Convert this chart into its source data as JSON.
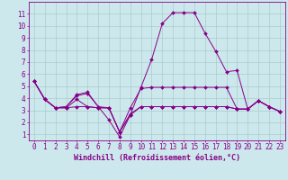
{
  "xlabel": "Windchill (Refroidissement éolien,°C)",
  "background_color": "#cce8ec",
  "line_color": "#880088",
  "grid_color": "#aacccc",
  "xlim": [
    -0.5,
    23.5
  ],
  "ylim": [
    0.5,
    12.0
  ],
  "xticks": [
    0,
    1,
    2,
    3,
    4,
    5,
    6,
    7,
    8,
    9,
    10,
    11,
    12,
    13,
    14,
    15,
    16,
    17,
    18,
    19,
    20,
    21,
    22,
    23
  ],
  "yticks": [
    1,
    2,
    3,
    4,
    5,
    6,
    7,
    8,
    9,
    10,
    11
  ],
  "lines": [
    [
      5.4,
      3.9,
      3.2,
      3.3,
      4.3,
      4.5,
      3.3,
      2.2,
      0.8,
      2.6,
      4.9,
      7.2,
      10.2,
      11.1,
      11.1,
      11.1,
      9.4,
      7.9,
      6.2,
      6.3,
      3.1,
      3.8,
      3.3,
      2.9
    ],
    [
      5.4,
      3.9,
      3.2,
      3.3,
      4.2,
      4.4,
      3.3,
      3.2,
      1.2,
      3.2,
      4.8,
      4.9,
      4.9,
      4.9,
      4.9,
      4.9,
      4.9,
      4.9,
      4.9,
      3.1,
      3.1,
      3.8,
      3.3,
      2.9
    ],
    [
      5.4,
      3.9,
      3.2,
      3.2,
      3.9,
      3.3,
      3.2,
      3.2,
      1.2,
      2.7,
      3.3,
      3.3,
      3.3,
      3.3,
      3.3,
      3.3,
      3.3,
      3.3,
      3.3,
      3.1,
      3.1,
      3.8,
      3.3,
      2.9
    ],
    [
      5.4,
      3.9,
      3.2,
      3.2,
      3.3,
      3.3,
      3.2,
      3.2,
      1.2,
      2.6,
      3.3,
      3.3,
      3.3,
      3.3,
      3.3,
      3.3,
      3.3,
      3.3,
      3.3,
      3.1,
      3.1,
      3.8,
      3.3,
      2.9
    ]
  ],
  "marker": "D",
  "markersize": 2.0,
  "linewidth": 0.7,
  "tick_fontsize": 5.5,
  "xlabel_fontsize": 6.0
}
